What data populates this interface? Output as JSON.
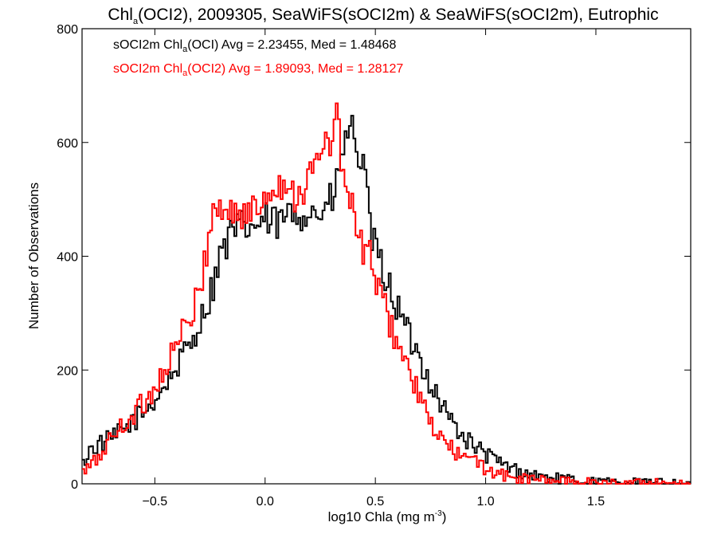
{
  "chart_data": {
    "type": "line",
    "title": {
      "prefix": "Chl",
      "sub": "a",
      "rest": "(OCI2), 2009305, SeaWiFS(sOCI2m) & SeaWiFS(sOCI2m), Eutrophic"
    },
    "xlabel": {
      "main": "log10 Chla (mg m",
      "sup": "-3",
      "close": ")"
    },
    "ylabel": "Number of Observations",
    "xlim": [
      -0.83,
      1.93
    ],
    "ylim": [
      0,
      800
    ],
    "x_ticks": [
      {
        "value": -0.5,
        "label": "−0.5"
      },
      {
        "value": 0.0,
        "label": "0.0"
      },
      {
        "value": 0.5,
        "label": "0.5"
      },
      {
        "value": 1.0,
        "label": "1.0"
      },
      {
        "value": 1.5,
        "label": "1.5"
      }
    ],
    "y_ticks": [
      {
        "value": 0,
        "label": "0"
      },
      {
        "value": 200,
        "label": "200"
      },
      {
        "value": 400,
        "label": "400"
      },
      {
        "value": 600,
        "label": "600"
      },
      {
        "value": 800,
        "label": "800"
      }
    ],
    "step_histogram": true,
    "bin_width": 0.01,
    "series": [
      {
        "color": "#000000",
        "legend": {
          "pre": "sOCI2m Chl",
          "sub": "a",
          "post": "(OCI) Avg = 2.23455, Med = 1.48468"
        },
        "points": [
          [
            -0.83,
            28
          ],
          [
            -0.8,
            58
          ],
          [
            -0.75,
            70
          ],
          [
            -0.7,
            78
          ],
          [
            -0.65,
            92
          ],
          [
            -0.6,
            110
          ],
          [
            -0.55,
            125
          ],
          [
            -0.5,
            148
          ],
          [
            -0.45,
            175
          ],
          [
            -0.4,
            205
          ],
          [
            -0.35,
            238
          ],
          [
            -0.3,
            280
          ],
          [
            -0.25,
            330
          ],
          [
            -0.22,
            375
          ],
          [
            -0.2,
            405
          ],
          [
            -0.15,
            440
          ],
          [
            -0.1,
            450
          ],
          [
            -0.05,
            452
          ],
          [
            0.0,
            462
          ],
          [
            0.05,
            455
          ],
          [
            0.1,
            468
          ],
          [
            0.15,
            478
          ],
          [
            0.2,
            480
          ],
          [
            0.25,
            475
          ],
          [
            0.3,
            495
          ],
          [
            0.33,
            530
          ],
          [
            0.35,
            585
          ],
          [
            0.38,
            625
          ],
          [
            0.4,
            612
          ],
          [
            0.42,
            590
          ],
          [
            0.45,
            540
          ],
          [
            0.48,
            440
          ],
          [
            0.5,
            410
          ],
          [
            0.55,
            360
          ],
          [
            0.6,
            310
          ],
          [
            0.65,
            262
          ],
          [
            0.7,
            222
          ],
          [
            0.75,
            178
          ],
          [
            0.8,
            140
          ],
          [
            0.85,
            108
          ],
          [
            0.9,
            82
          ],
          [
            0.95,
            66
          ],
          [
            1.0,
            52
          ],
          [
            1.05,
            40
          ],
          [
            1.1,
            30
          ],
          [
            1.15,
            22
          ],
          [
            1.2,
            16
          ],
          [
            1.3,
            10
          ],
          [
            1.4,
            6
          ],
          [
            1.5,
            4
          ],
          [
            1.6,
            3
          ],
          [
            1.7,
            2
          ],
          [
            1.8,
            2
          ],
          [
            1.93,
            1
          ]
        ]
      },
      {
        "color": "#ff0000",
        "legend": {
          "pre": "sOCI2m Chl",
          "sub": "a",
          "post": "(OCI2) Avg = 1.89093, Med = 1.28127"
        },
        "points": [
          [
            -0.83,
            18
          ],
          [
            -0.8,
            28
          ],
          [
            -0.75,
            48
          ],
          [
            -0.7,
            80
          ],
          [
            -0.65,
            100
          ],
          [
            -0.6,
            122
          ],
          [
            -0.55,
            142
          ],
          [
            -0.5,
            168
          ],
          [
            -0.45,
            205
          ],
          [
            -0.4,
            248
          ],
          [
            -0.35,
            280
          ],
          [
            -0.3,
            330
          ],
          [
            -0.27,
            400
          ],
          [
            -0.25,
            460
          ],
          [
            -0.22,
            490
          ],
          [
            -0.2,
            480
          ],
          [
            -0.15,
            480
          ],
          [
            -0.1,
            470
          ],
          [
            -0.05,
            478
          ],
          [
            0.0,
            505
          ],
          [
            0.05,
            535
          ],
          [
            0.1,
            520
          ],
          [
            0.15,
            510
          ],
          [
            0.2,
            535
          ],
          [
            0.25,
            575
          ],
          [
            0.28,
            598
          ],
          [
            0.3,
            610
          ],
          [
            0.32,
            645
          ],
          [
            0.34,
            600
          ],
          [
            0.36,
            530
          ],
          [
            0.38,
            500
          ],
          [
            0.4,
            475
          ],
          [
            0.42,
            430
          ],
          [
            0.45,
            410
          ],
          [
            0.48,
            400
          ],
          [
            0.5,
            360
          ],
          [
            0.55,
            300
          ],
          [
            0.6,
            250
          ],
          [
            0.65,
            200
          ],
          [
            0.7,
            152
          ],
          [
            0.75,
            105
          ],
          [
            0.8,
            78
          ],
          [
            0.85,
            60
          ],
          [
            0.9,
            46
          ],
          [
            0.95,
            38
          ],
          [
            1.0,
            28
          ],
          [
            1.05,
            18
          ],
          [
            1.1,
            12
          ],
          [
            1.2,
            8
          ],
          [
            1.3,
            6
          ],
          [
            1.4,
            4
          ],
          [
            1.5,
            3
          ],
          [
            1.6,
            2
          ],
          [
            1.93,
            1
          ]
        ]
      }
    ]
  }
}
